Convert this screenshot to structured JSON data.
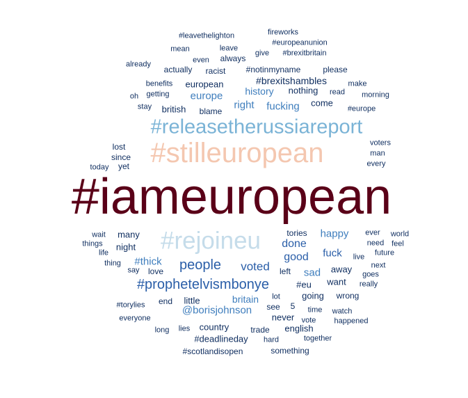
{
  "palette": {
    "darkest": "#5a0018",
    "navy": "#0d2c5e",
    "mid_blue": "#2a5ea8",
    "steel_blue": "#3f7ebd",
    "light_blue": "#7ab3d6",
    "pale_blue": "#c5dcea",
    "peach": "#f4c7b0"
  },
  "words": [
    {
      "text": "#iameuropean",
      "color": "darkest"
    },
    {
      "text": "#stilleuropean",
      "color": "peach"
    },
    {
      "text": "#releasetherussiareport",
      "color": "light_blue"
    },
    {
      "text": "#rejoineu",
      "color": "pale_blue"
    },
    {
      "text": "#prophetelvismbonye",
      "color": "mid_blue"
    },
    {
      "text": "people",
      "color": "mid_blue"
    },
    {
      "text": "voted",
      "color": "mid_blue"
    },
    {
      "text": "done",
      "color": "mid_blue"
    },
    {
      "text": "happy",
      "color": "steel_blue"
    },
    {
      "text": "good",
      "color": "mid_blue"
    },
    {
      "text": "fuck",
      "color": "mid_blue"
    },
    {
      "text": "sad",
      "color": "steel_blue"
    },
    {
      "text": "@borisjohnson",
      "color": "steel_blue"
    },
    {
      "text": "britain",
      "color": "steel_blue"
    },
    {
      "text": "#thick",
      "color": "steel_blue"
    },
    {
      "text": "#brexitshambles",
      "color": "navy"
    },
    {
      "text": "history",
      "color": "steel_blue"
    },
    {
      "text": "europe",
      "color": "steel_blue"
    },
    {
      "text": "right",
      "color": "steel_blue"
    },
    {
      "text": "fucking",
      "color": "steel_blue"
    },
    {
      "text": "european",
      "color": "navy"
    },
    {
      "text": "british",
      "color": "navy"
    },
    {
      "text": "nothing",
      "color": "navy"
    },
    {
      "text": "come",
      "color": "navy"
    },
    {
      "text": "#notinmyname",
      "color": "navy"
    },
    {
      "text": "always",
      "color": "navy"
    },
    {
      "text": "actually",
      "color": "navy"
    },
    {
      "text": "racist",
      "color": "navy"
    },
    {
      "text": "please",
      "color": "navy"
    },
    {
      "text": "make",
      "color": "navy"
    },
    {
      "text": "read",
      "color": "navy"
    },
    {
      "text": "morning",
      "color": "navy"
    },
    {
      "text": "#europe",
      "color": "navy"
    },
    {
      "text": "blame",
      "color": "navy"
    },
    {
      "text": "stay",
      "color": "navy"
    },
    {
      "text": "getting",
      "color": "navy"
    },
    {
      "text": "oh",
      "color": "navy"
    },
    {
      "text": "benefits",
      "color": "navy"
    },
    {
      "text": "already",
      "color": "navy"
    },
    {
      "text": "even",
      "color": "navy"
    },
    {
      "text": "mean",
      "color": "navy"
    },
    {
      "text": "leave",
      "color": "navy"
    },
    {
      "text": "give",
      "color": "navy"
    },
    {
      "text": "#brexitbritain",
      "color": "navy"
    },
    {
      "text": "#europeanunion",
      "color": "navy"
    },
    {
      "text": "fireworks",
      "color": "navy"
    },
    {
      "text": "#leavethelighton",
      "color": "navy"
    },
    {
      "text": "lost",
      "color": "navy"
    },
    {
      "text": "since",
      "color": "navy"
    },
    {
      "text": "today",
      "color": "navy"
    },
    {
      "text": "yet",
      "color": "navy"
    },
    {
      "text": "voters",
      "color": "navy"
    },
    {
      "text": "man",
      "color": "navy"
    },
    {
      "text": "every",
      "color": "navy"
    },
    {
      "text": "many",
      "color": "navy"
    },
    {
      "text": "night",
      "color": "navy"
    },
    {
      "text": "wait",
      "color": "navy"
    },
    {
      "text": "things",
      "color": "navy"
    },
    {
      "text": "life",
      "color": "navy"
    },
    {
      "text": "thing",
      "color": "navy"
    },
    {
      "text": "say",
      "color": "navy"
    },
    {
      "text": "love",
      "color": "navy"
    },
    {
      "text": "tories",
      "color": "navy"
    },
    {
      "text": "ever",
      "color": "navy"
    },
    {
      "text": "world",
      "color": "navy"
    },
    {
      "text": "need",
      "color": "navy"
    },
    {
      "text": "feel",
      "color": "navy"
    },
    {
      "text": "future",
      "color": "navy"
    },
    {
      "text": "live",
      "color": "navy"
    },
    {
      "text": "next",
      "color": "navy"
    },
    {
      "text": "goes",
      "color": "navy"
    },
    {
      "text": "really",
      "color": "navy"
    },
    {
      "text": "away",
      "color": "navy"
    },
    {
      "text": "want",
      "color": "navy"
    },
    {
      "text": "left",
      "color": "navy"
    },
    {
      "text": "#eu",
      "color": "navy"
    },
    {
      "text": "going",
      "color": "navy"
    },
    {
      "text": "wrong",
      "color": "navy"
    },
    {
      "text": "lot",
      "color": "navy"
    },
    {
      "text": "see",
      "color": "navy"
    },
    {
      "text": "5",
      "color": "navy"
    },
    {
      "text": "time",
      "color": "navy"
    },
    {
      "text": "watch",
      "color": "navy"
    },
    {
      "text": "never",
      "color": "navy"
    },
    {
      "text": "vote",
      "color": "navy"
    },
    {
      "text": "happened",
      "color": "navy"
    },
    {
      "text": "#torylies",
      "color": "navy"
    },
    {
      "text": "end",
      "color": "navy"
    },
    {
      "text": "little",
      "color": "navy"
    },
    {
      "text": "everyone",
      "color": "navy"
    },
    {
      "text": "long",
      "color": "navy"
    },
    {
      "text": "lies",
      "color": "navy"
    },
    {
      "text": "country",
      "color": "navy"
    },
    {
      "text": "trade",
      "color": "navy"
    },
    {
      "text": "english",
      "color": "navy"
    },
    {
      "text": "#deadlineday",
      "color": "navy"
    },
    {
      "text": "hard",
      "color": "navy"
    },
    {
      "text": "together",
      "color": "navy"
    },
    {
      "text": "#scotlandisopen",
      "color": "navy"
    },
    {
      "text": "something",
      "color": "navy"
    }
  ]
}
